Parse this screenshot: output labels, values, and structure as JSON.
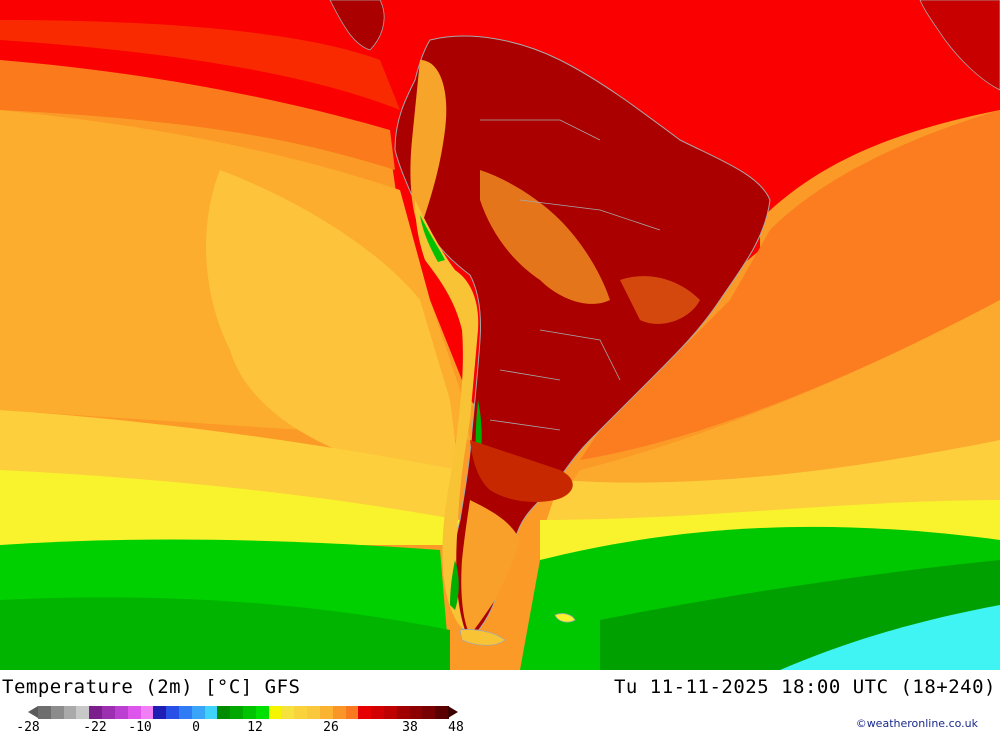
{
  "title": {
    "left": "Temperature (2m) [°C] GFS",
    "right": "Tu 11-11-2025 18:00 UTC (18+240)"
  },
  "legend": {
    "tick_labels": [
      "-28",
      "-22",
      "-10",
      "0",
      "12",
      "26",
      "38",
      "48"
    ],
    "colors": [
      "#6e6e6e",
      "#8c8c8c",
      "#aaaaaa",
      "#c8c8c8",
      "#7a1f8c",
      "#9b2fb0",
      "#bb3fd0",
      "#dd55ea",
      "#f07ff5",
      "#1e1eb4",
      "#2850e6",
      "#2f7cf5",
      "#3aa5f8",
      "#3fd2fb",
      "#008c00",
      "#00a800",
      "#00c400",
      "#00e000",
      "#f5f500",
      "#f5e23c",
      "#fad23c",
      "#fac83c",
      "#fab432",
      "#fa9628",
      "#fa781e",
      "#e60000",
      "#d20000",
      "#be0000",
      "#a00000",
      "#8c0000",
      "#780000",
      "#5a0000"
    ]
  },
  "credit": "©weatheronline.co.uk",
  "map": {
    "region": "South America",
    "palette": {
      "ocean_far_orange": "#fb9a27",
      "ocean_mid_orange": "#fdb02e",
      "ocean_yellow_orange": "#fdc93a",
      "ocean_yellow": "#f8f32d",
      "ocean_green": "#00d000",
      "ocean_dark_green": "#00a000",
      "ice_cyan": "#40f4f4",
      "tropics_red": "#fa0000",
      "land_dark_red": "#aa0000",
      "land_mid_red": "#c80000",
      "land_orange": "#f7a52a",
      "border_gray": "#a8a8a8"
    }
  }
}
